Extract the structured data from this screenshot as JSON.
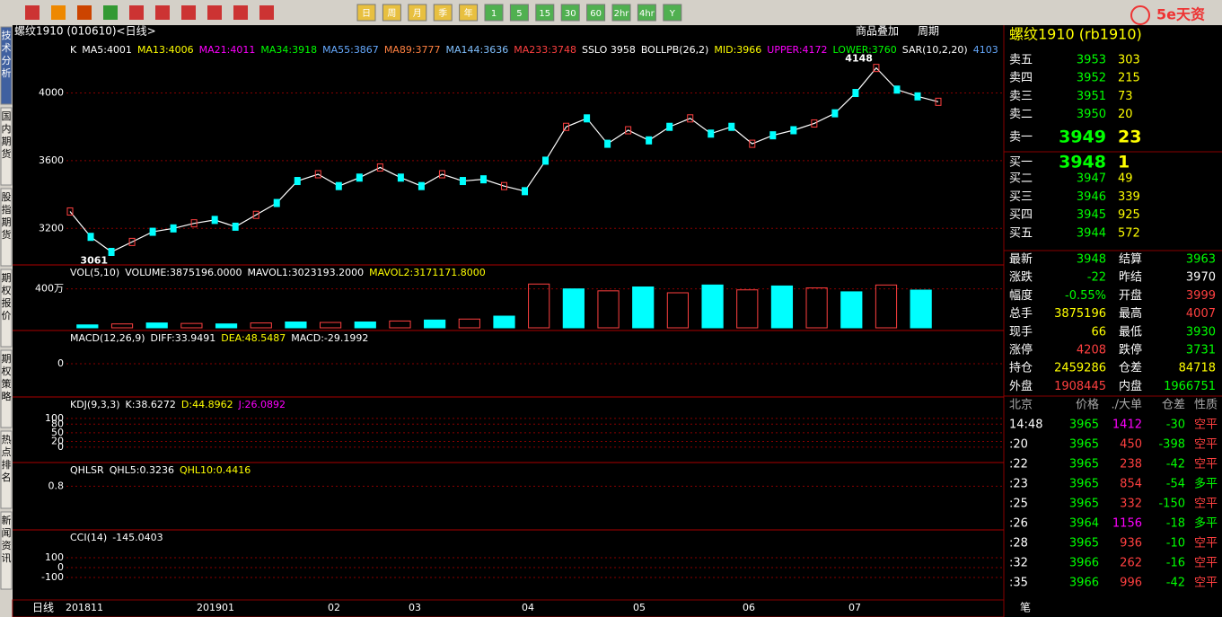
{
  "toolbar": [
    "日",
    "周",
    "月",
    "季",
    "年",
    "1",
    "5",
    "15",
    "30",
    "60",
    "2hr",
    "4hr",
    "Y"
  ],
  "side_tabs": [
    "技术分析",
    "国内期货",
    "股指期货",
    "期权报价",
    "期权策略",
    "热点排名",
    "新闻资讯"
  ],
  "header": {
    "title": "螺纹1910 (010610)<日线>",
    "links": [
      "商品叠加",
      "周期"
    ]
  },
  "bottom": {
    "period": "日线",
    "months": [
      "201811",
      "201901",
      "02",
      "03",
      "04",
      "05",
      "06",
      "07"
    ]
  },
  "chart_data": [
    {
      "type": "line",
      "name": "main",
      "title_items": [
        {
          "text": "K",
          "color": "#ffffff"
        },
        {
          "text": "MA5:4001",
          "color": "#ffffff"
        },
        {
          "text": "MA13:4006",
          "color": "#ffff00"
        },
        {
          "text": "MA21:4011",
          "color": "#ff00ff"
        },
        {
          "text": "MA34:3918",
          "color": "#00ff00"
        },
        {
          "text": "MA55:3867",
          "color": "#66aaff"
        },
        {
          "text": "MA89:3777",
          "color": "#ff8040"
        },
        {
          "text": "MA144:3636",
          "color": "#80c0ff"
        },
        {
          "text": "MA233:3748",
          "color": "#ff4040"
        },
        {
          "text": "SSLO 3958",
          "color": "#ffffff"
        },
        {
          "text": "BOLLPB(26,2)",
          "color": "#ffffff"
        },
        {
          "text": "MID:3966",
          "color": "#ffff00"
        },
        {
          "text": "UPPER:4172",
          "color": "#ff00ff"
        },
        {
          "text": "LOWER:3760",
          "color": "#00ff00"
        },
        {
          "text": "SAR(10,2,20)",
          "color": "#ffffff"
        },
        {
          "text": "4103",
          "color": "#66aaff"
        }
      ],
      "values": [
        3300,
        3150,
        3061,
        3120,
        3180,
        3200,
        3230,
        3250,
        3210,
        3280,
        3350,
        3480,
        3520,
        3450,
        3500,
        3560,
        3500,
        3450,
        3520,
        3480,
        3490,
        3450,
        3420,
        3600,
        3800,
        3850,
        3700,
        3780,
        3720,
        3800,
        3850,
        3760,
        3800,
        3700,
        3750,
        3780,
        3820,
        3880,
        4000,
        4148,
        4020,
        3980,
        3948
      ],
      "color": "#ffffff",
      "annotations": [
        {
          "text": "4148",
          "value": 4148
        },
        {
          "text": "3061",
          "value": 3061
        }
      ],
      "ylim": [
        3000,
        4300
      ],
      "yticks": [
        3200,
        3600,
        4000
      ]
    },
    {
      "type": "bar",
      "name": "volume",
      "title_items": [
        {
          "text": "VOL(5,10)",
          "color": "#ffffff"
        },
        {
          "text": "VOLUME:3875196.0000",
          "color": "#ffffff"
        },
        {
          "text": "MAVOL1:3023193.2000",
          "color": "#ffffff"
        },
        {
          "text": "MAVOL2:3171171.8000",
          "color": "#ffff00"
        }
      ],
      "values": [
        300000,
        400000,
        500000,
        450000,
        400000,
        500000,
        600000,
        550000,
        600000,
        700000,
        800000,
        900000,
        1200000,
        4500000,
        4000000,
        3800000,
        4200000,
        3600000,
        4400000,
        3900000,
        4300000,
        4100000,
        3700000,
        4400000,
        3875196
      ],
      "color": "#00ffff",
      "ylim": [
        0,
        6000000
      ],
      "yticks": [
        {
          "value": 4000000,
          "label": "400万"
        }
      ]
    },
    {
      "type": "indicator",
      "name": "macd",
      "title_items": [
        {
          "text": "MACD(12,26,9)",
          "color": "#ffffff"
        },
        {
          "text": "DIFF:33.9491",
          "color": "#ffffff"
        },
        {
          "text": "DEA:48.5487",
          "color": "#ffff00"
        },
        {
          "text": "MACD:-29.1992",
          "color": "#ffffff"
        }
      ],
      "ylim": [
        -100,
        100
      ],
      "yticks": [
        0
      ]
    },
    {
      "type": "indicator",
      "name": "kdj",
      "title_items": [
        {
          "text": "KDJ(9,3,3)",
          "color": "#ffffff"
        },
        {
          "text": "K:38.6272",
          "color": "#ffffff"
        },
        {
          "text": "D:44.8962",
          "color": "#ffff00"
        },
        {
          "text": "J:26.0892",
          "color": "#ff00ff"
        }
      ],
      "ylim": [
        -44,
        162
      ],
      "yticks": [
        0,
        20,
        50,
        80,
        100
      ]
    },
    {
      "type": "indicator",
      "name": "qhlsr",
      "title_items": [
        {
          "text": "QHLSR",
          "color": "#ffffff"
        },
        {
          "text": "QHL5:0.3236",
          "color": "#ffffff"
        },
        {
          "text": "QHL10:0.4416",
          "color": "#ffff00"
        }
      ],
      "ylim": [
        0,
        1.2
      ],
      "yticks": [
        0.8
      ]
    },
    {
      "type": "indicator",
      "name": "cci",
      "title_items": [
        {
          "text": "CCI(14)",
          "color": "#ffffff"
        },
        {
          "text": "-145.0403",
          "color": "#ffffff"
        }
      ],
      "ylim": [
        -300,
        345
      ],
      "yticks": [
        -100,
        0,
        100
      ]
    }
  ],
  "quote": {
    "title": "螺纹1910 (rb1910)",
    "logo": "5e天资",
    "sell": [
      {
        "label": "卖五",
        "price": 3953,
        "qty": 303
      },
      {
        "label": "卖四",
        "price": 3952,
        "qty": 215
      },
      {
        "label": "卖三",
        "price": 3951,
        "qty": 73
      },
      {
        "label": "卖二",
        "price": 3950,
        "qty": 20
      },
      {
        "label": "卖一",
        "price": 3949,
        "qty": 23
      }
    ],
    "buy": [
      {
        "label": "买一",
        "price": 3948,
        "qty": 1
      },
      {
        "label": "买二",
        "price": 3947,
        "qty": 49
      },
      {
        "label": "买三",
        "price": 3946,
        "qty": 339
      },
      {
        "label": "买四",
        "price": 3945,
        "qty": 925
      },
      {
        "label": "买五",
        "price": 3944,
        "qty": 572
      }
    ],
    "stats": [
      [
        {
          "label": "最新",
          "value": "3948",
          "color": "#00ff00"
        },
        {
          "label": "结算",
          "value": "3963",
          "color": "#00ff00"
        }
      ],
      [
        {
          "label": "涨跌",
          "value": "-22",
          "color": "#00ff00"
        },
        {
          "label": "昨结",
          "value": "3970",
          "color": "#ffffff"
        }
      ],
      [
        {
          "label": "幅度",
          "value": "-0.55%",
          "color": "#00ff00"
        },
        {
          "label": "开盘",
          "value": "3999",
          "color": "#ff4040"
        }
      ],
      [
        {
          "label": "总手",
          "value": "3875196",
          "color": "#ffff00"
        },
        {
          "label": "最高",
          "value": "4007",
          "color": "#ff4040"
        }
      ],
      [
        {
          "label": "现手",
          "value": "66",
          "color": "#ffff00"
        },
        {
          "label": "最低",
          "value": "3930",
          "color": "#00ff00"
        }
      ],
      [
        {
          "label": "涨停",
          "value": "4208",
          "color": "#ff4040"
        },
        {
          "label": "跌停",
          "value": "3731",
          "color": "#00ff00"
        }
      ],
      [
        {
          "label": "持仓",
          "value": "2459286",
          "color": "#ffff00"
        },
        {
          "label": "仓差",
          "value": "84718",
          "color": "#ffff00"
        }
      ],
      [
        {
          "label": "外盘",
          "value": "1908445",
          "color": "#ff4040"
        },
        {
          "label": "内盘",
          "value": "1966751",
          "color": "#00ff00"
        }
      ]
    ],
    "trades_header": [
      "北京",
      "价格",
      "./大单",
      "仓差",
      "性质"
    ],
    "trades": [
      [
        "14:48",
        "3965",
        "1412",
        "-30",
        "空平"
      ],
      [
        ":20",
        "3965",
        "450",
        "-398",
        "空平"
      ],
      [
        ":22",
        "3965",
        "238",
        "-42",
        "空平"
      ],
      [
        ":23",
        "3965",
        "854",
        "-54",
        "多平"
      ],
      [
        ":25",
        "3965",
        "332",
        "-150",
        "空平"
      ],
      [
        ":26",
        "3964",
        "1156",
        "-18",
        "多平"
      ],
      [
        ":28",
        "3965",
        "936",
        "-10",
        "空平"
      ],
      [
        ":32",
        "3966",
        "262",
        "-16",
        "空平"
      ],
      [
        ":35",
        "3966",
        "996",
        "-42",
        "空平"
      ]
    ],
    "footer": "笔"
  }
}
